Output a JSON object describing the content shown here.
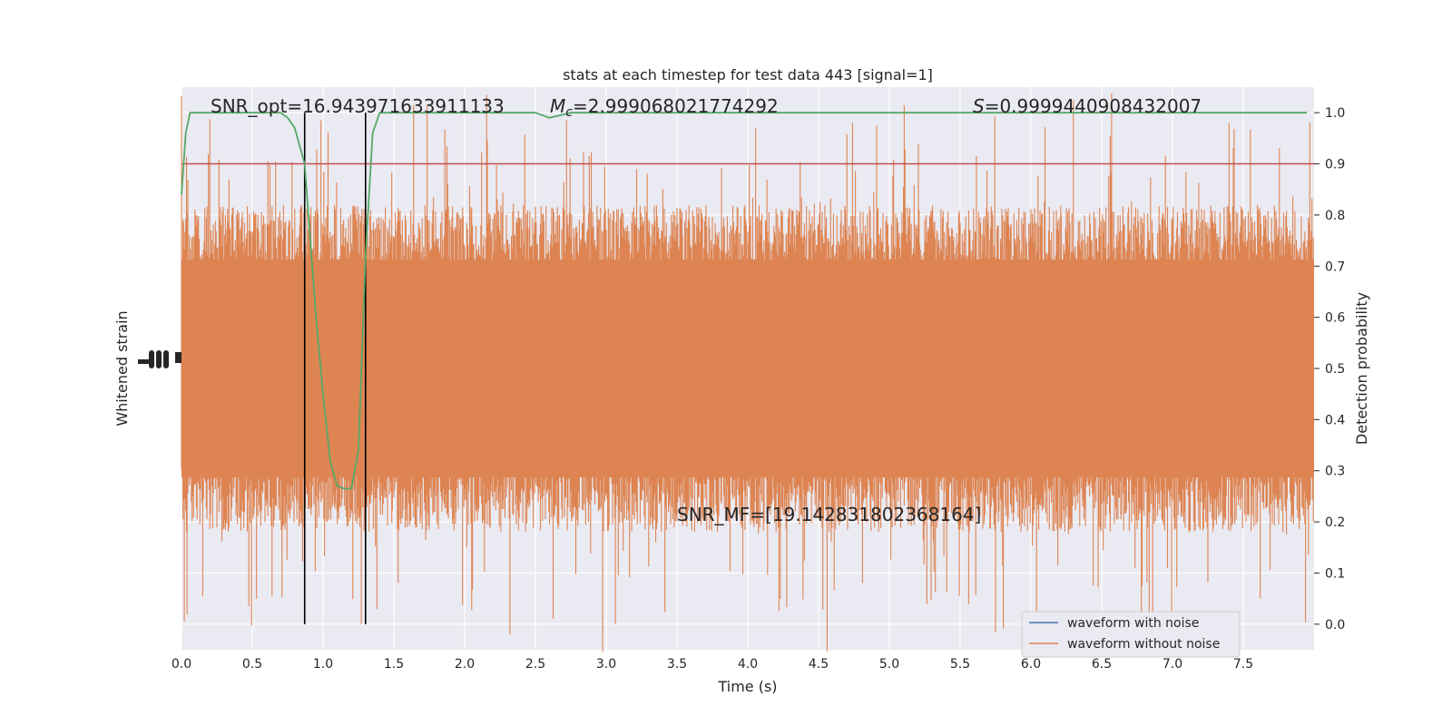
{
  "chart_data": {
    "type": "line",
    "title": "stats at each timestep for test data 443 [signal=1]",
    "xlabel": "Time (s)",
    "ylabel_left": "Whitened strain",
    "ylabel_right": "Detection probability",
    "xlim": [
      0,
      8
    ],
    "x_ticks": [
      "0.0",
      "0.5",
      "1.0",
      "1.5",
      "2.0",
      "2.5",
      "3.0",
      "3.5",
      "4.0",
      "4.5",
      "5.0",
      "5.5",
      "6.0",
      "6.5",
      "7.0",
      "7.5"
    ],
    "ylim_right": [
      -0.05,
      1.05
    ],
    "y_ticks_right": [
      "0.0",
      "0.1",
      "0.2",
      "0.3",
      "0.4",
      "0.5",
      "0.6",
      "0.7",
      "0.8",
      "0.9",
      "1.0"
    ],
    "grid": true,
    "legend": {
      "position": "lower-right",
      "entries": [
        {
          "label": "waveform with noise",
          "color": "#4c72b0"
        },
        {
          "label": "waveform without noise",
          "color": "#dd8452"
        }
      ]
    },
    "annotations": {
      "snr_opt": "SNR_opt=16.943971633911133",
      "mc_symbol": "M",
      "mc_sub": "c",
      "mc_value": "=2.999068021774292",
      "s_symbol": "S",
      "s_value": "=0.9999440908432007",
      "snr_mf": "SNR_MF=[19.142831802368164]"
    },
    "threshold": {
      "y": 0.9,
      "color": "#c44e52"
    },
    "vertical_lines": [
      0.87,
      1.3
    ],
    "detection_probability": {
      "color": "#55a868",
      "x": [
        0.0,
        0.03,
        0.06,
        0.2,
        0.5,
        0.7,
        0.75,
        0.8,
        0.87,
        0.95,
        1.0,
        1.05,
        1.1,
        1.15,
        1.2,
        1.25,
        1.3,
        1.35,
        1.4,
        1.45,
        1.6,
        2.0,
        2.5,
        2.6,
        2.75,
        3.0,
        4.0,
        5.0,
        6.0,
        7.0,
        7.95
      ],
      "y": [
        0.84,
        0.96,
        1.0,
        1.0,
        1.0,
        1.0,
        0.99,
        0.97,
        0.9,
        0.6,
        0.45,
        0.32,
        0.27,
        0.265,
        0.265,
        0.34,
        0.72,
        0.96,
        1.0,
        1.0,
        1.0,
        1.0,
        1.0,
        0.99,
        1.0,
        1.0,
        1.0,
        1.0,
        1.0,
        1.0,
        1.0
      ]
    },
    "strain_series": [
      {
        "name": "waveform with noise",
        "color": "#4c72b0"
      },
      {
        "name": "waveform without noise",
        "color": "#dd8452",
        "approx_range": [
          -4.5,
          4.5
        ]
      }
    ]
  }
}
